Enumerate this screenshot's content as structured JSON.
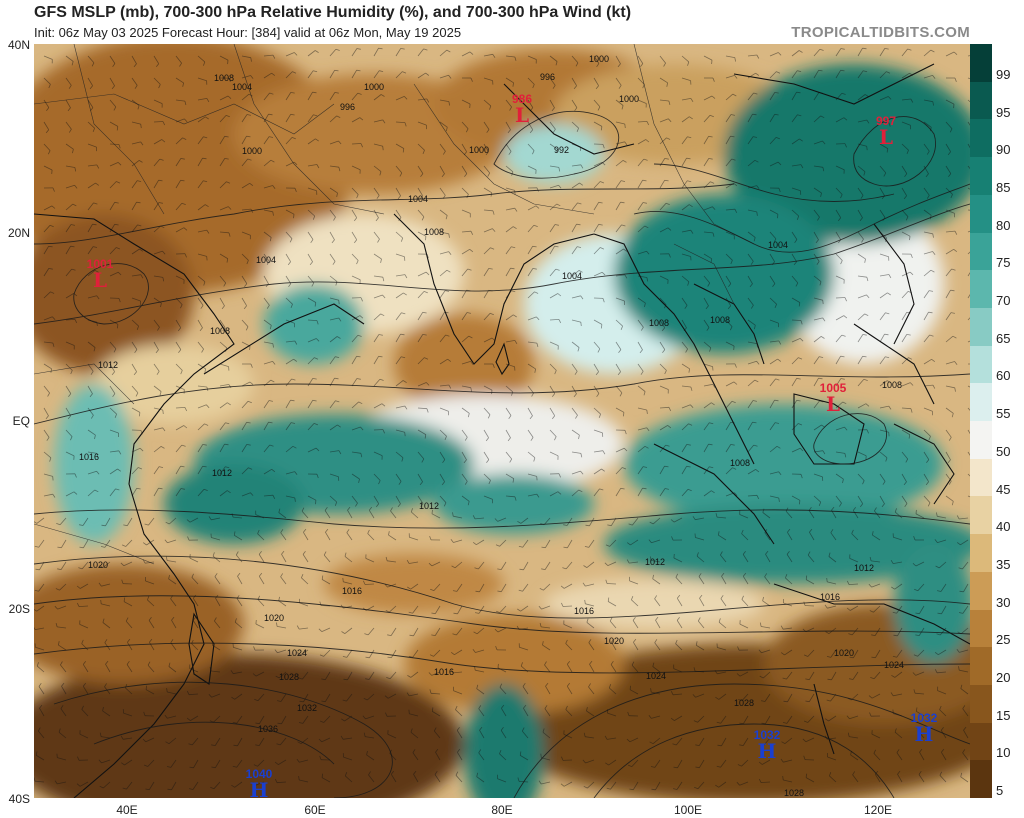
{
  "header": {
    "title": "GFS MSLP (mb), 700-300 hPa Relative Humidity (%), and 700-300 hPa Wind (kt)",
    "subtitle": "Init: 06z May 03 2025   Forecast Hour: [384]   valid at 06z Mon, May 19 2025",
    "brand": "TROPICALTIDBITS.COM"
  },
  "axes": {
    "lat_labels": [
      "40N",
      "20N",
      "EQ",
      "20S",
      "40S"
    ],
    "lon_labels": [
      "40E",
      "60E",
      "80E",
      "100E",
      "120E"
    ]
  },
  "colorbar": {
    "ticks": [
      "99",
      "95",
      "90",
      "85",
      "80",
      "75",
      "70",
      "65",
      "60",
      "55",
      "50",
      "45",
      "40",
      "35",
      "30",
      "25",
      "20",
      "15",
      "10",
      "5"
    ],
    "colors": [
      "#053f38",
      "#0a5a50",
      "#0e6d61",
      "#178073",
      "#249085",
      "#3aa398",
      "#5cb7ad",
      "#88cbc4",
      "#b4e0dc",
      "#dcefee",
      "#f4f4f2",
      "#f3e6cb",
      "#e8d2a3",
      "#dcb97a",
      "#cc9c56",
      "#b8813a",
      "#a06a28",
      "#88561d",
      "#714415",
      "#5b350f"
    ]
  },
  "pressure_centers": [
    {
      "type": "L",
      "value": "986",
      "color": "#e0203a"
    },
    {
      "type": "L",
      "value": "997",
      "color": "#e0203a"
    },
    {
      "type": "L",
      "value": "1001",
      "color": "#e0203a"
    },
    {
      "type": "L",
      "value": "1005",
      "color": "#e0203a"
    },
    {
      "type": "H",
      "value": "1032",
      "color": "#1a3fd0"
    },
    {
      "type": "H",
      "value": "1032",
      "color": "#1a3fd0"
    },
    {
      "type": "H",
      "value": "1040",
      "color": "#1a3fd0"
    }
  ],
  "isobar_labels": [
    "1008",
    "1004",
    "1000",
    "996",
    "1000",
    "996",
    "992",
    "1000",
    "1000",
    "1004",
    "1008",
    "1004",
    "1000",
    "1004",
    "1008",
    "1004",
    "1008",
    "1008",
    "1012",
    "1016",
    "1008",
    "1008",
    "1012",
    "1020",
    "1012",
    "1012",
    "1012",
    "1016",
    "1020",
    "1024",
    "1028",
    "1032",
    "1036",
    "1016",
    "1016",
    "1020",
    "1024",
    "1028",
    "1016",
    "1020",
    "1024",
    "1028"
  ]
}
